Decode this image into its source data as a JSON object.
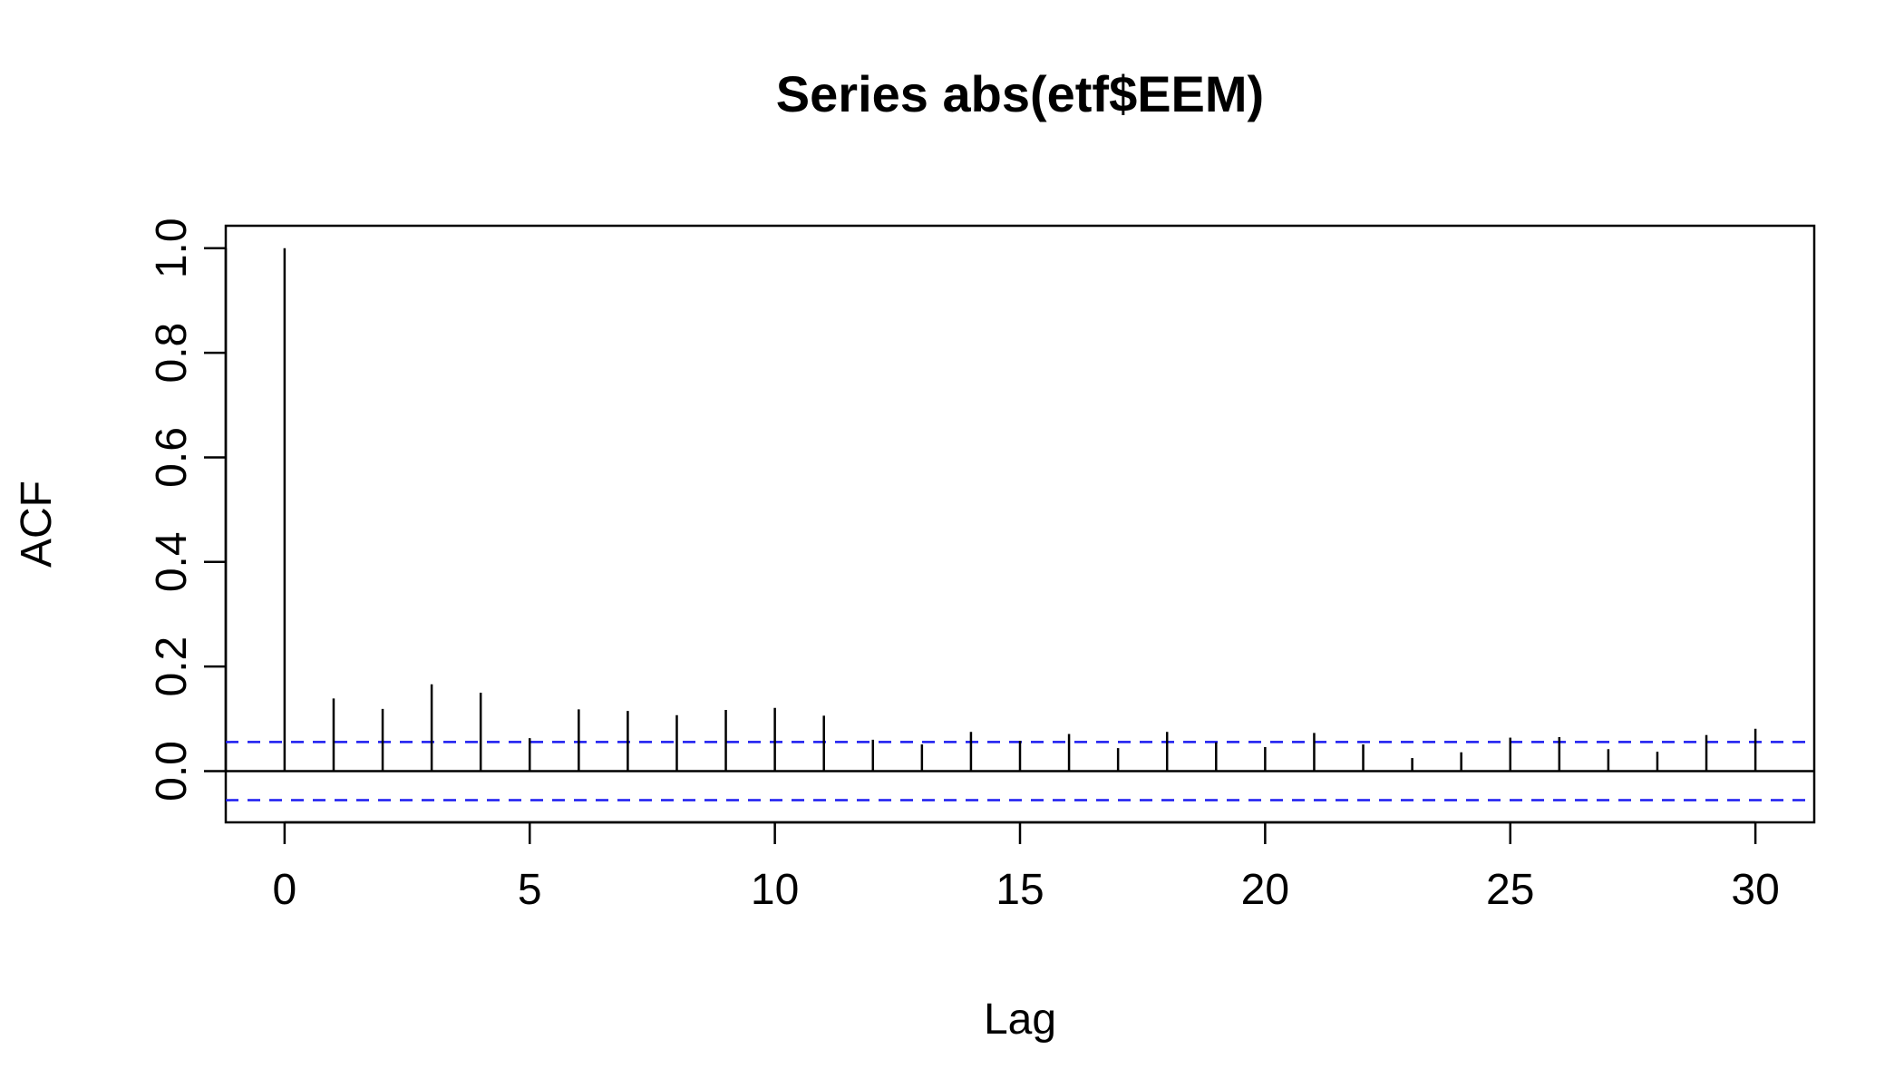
{
  "chart_data": {
    "type": "bar",
    "title": "Series  abs(etf$EEM)",
    "xlabel": "Lag",
    "ylabel": "ACF",
    "xlim": [
      -1.2,
      31.2
    ],
    "ylim": [
      -0.098,
      1.043
    ],
    "x_ticks": [
      0,
      5,
      10,
      15,
      20,
      25,
      30
    ],
    "x_tick_labels": [
      "0",
      "5",
      "10",
      "15",
      "20",
      "25",
      "30"
    ],
    "y_ticks": [
      0.0,
      0.2,
      0.4,
      0.6,
      0.8,
      1.0
    ],
    "y_tick_labels": [
      "0.0",
      "0.2",
      "0.4",
      "0.6",
      "0.8",
      "1.0"
    ],
    "lags": [
      0,
      1,
      2,
      3,
      4,
      5,
      6,
      7,
      8,
      9,
      10,
      11,
      12,
      13,
      14,
      15,
      16,
      17,
      18,
      19,
      20,
      21,
      22,
      23,
      24,
      25,
      26,
      27,
      28,
      29,
      30
    ],
    "values": [
      1.0,
      0.139,
      0.119,
      0.166,
      0.15,
      0.063,
      0.118,
      0.115,
      0.107,
      0.117,
      0.121,
      0.106,
      0.06,
      0.051,
      0.075,
      0.058,
      0.071,
      0.044,
      0.075,
      0.055,
      0.046,
      0.073,
      0.051,
      0.025,
      0.036,
      0.064,
      0.065,
      0.042,
      0.037,
      0.069,
      0.081
    ],
    "confidence_bound": 0.0556,
    "zero_line": true,
    "grid": false,
    "bound_color": "#1a1af0",
    "bar_color": "#000000"
  }
}
